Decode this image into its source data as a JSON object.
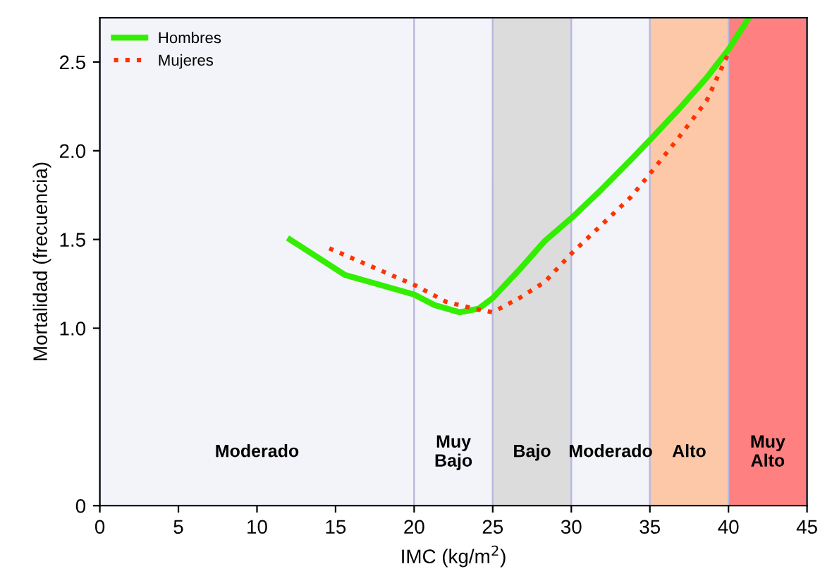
{
  "chart_data": {
    "type": "line",
    "xlabel": "IMC (kg/m$^{2}$)",
    "ylabel": "Mortalidad (frecuencia)",
    "xlim": [
      0,
      45
    ],
    "xticks": [
      0,
      5,
      10,
      15,
      20,
      25,
      30,
      35,
      40,
      45
    ],
    "ylim": [
      0,
      2.75
    ],
    "yticks": [
      0,
      {
        "value": 1.0,
        "label": "1.0"
      },
      1.5,
      {
        "value": 2.0,
        "label": "2.0"
      },
      2.5
    ],
    "grid": false,
    "legend": "top left",
    "series": [
      {
        "name": "Hombres",
        "color": "#33ee00",
        "line_style": "solid",
        "x": [
          12.1,
          15.6,
          20,
          21.3,
          22.9,
          24.1,
          25,
          26.7,
          28.3,
          30,
          31.9,
          33.8,
          35,
          36.8,
          38.6,
          40,
          41.3
        ],
        "values": [
          1.5,
          1.3,
          1.19,
          1.13,
          1.09,
          1.11,
          1.17,
          1.33,
          1.49,
          1.62,
          1.78,
          1.95,
          2.06,
          2.23,
          2.41,
          2.57,
          2.75
        ]
      },
      {
        "name": "Mujeres",
        "color": "#ff3300",
        "line_style": "dotted",
        "x": [
          14.6,
          20.1,
          22,
          23.8,
          25,
          26.7,
          28.3,
          30,
          31.9,
          33.8,
          35,
          36.8,
          38.6,
          40
        ],
        "values": [
          1.45,
          1.24,
          1.15,
          1.11,
          1.09,
          1.17,
          1.26,
          1.42,
          1.58,
          1.74,
          1.87,
          2.07,
          2.28,
          2.55
        ]
      }
    ],
    "bands": [
      {
        "axis": "x",
        "from": 0,
        "to": 20,
        "label": "Moderado",
        "color": "#f3f3fa"
      },
      {
        "axis": "x",
        "from": 20,
        "to": 25,
        "label": "Muy\nBajo",
        "color": "#f3f3fa"
      },
      {
        "axis": "x",
        "from": 25,
        "to": 30,
        "label": "Bajo",
        "color": "#dcdcdc"
      },
      {
        "axis": "x",
        "from": 30,
        "to": 35,
        "label": "Moderado",
        "color": "#f3f3fa"
      },
      {
        "axis": "x",
        "from": 35,
        "to": 40,
        "label": "Alto",
        "color": "#fcc8a8"
      },
      {
        "axis": "x",
        "from": 40,
        "to": 45,
        "label": "Muy\nAlto",
        "color": "#ff8080"
      }
    ]
  }
}
